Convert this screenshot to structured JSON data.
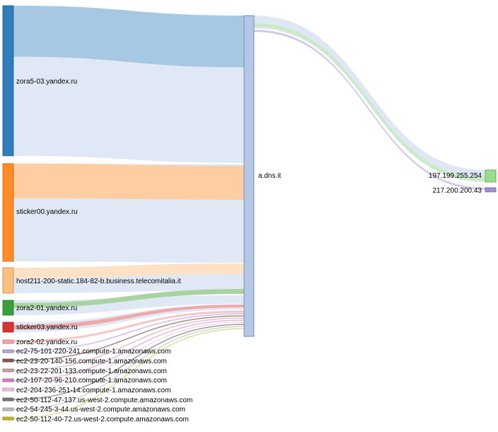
{
  "diagram": {
    "type": "sankey",
    "sources": [
      {
        "label": "zora5-03.yandex.ru",
        "color": "#2f7dba"
      },
      {
        "label": "sticker00.yandex.ru",
        "color": "#ff8c28"
      },
      {
        "label": "host211-200-static.184-82-b.business.telecomitalia.it",
        "color": "#ffbf80"
      },
      {
        "label": "zora2-01.yandex.ru",
        "color": "#3a9e3a"
      },
      {
        "label": "sticker03.yandex.ru",
        "color": "#d93333"
      },
      {
        "label": "zora2-02.yandex.ru",
        "color": "#f5a3a3"
      },
      {
        "label": "ec2-75-101-220-241.compute-1.amazonaws.com",
        "color": "#b9a9d6"
      },
      {
        "label": "ec2-23-20-140-156.compute-1.amazonaws.com",
        "color": "#7f5a4f"
      },
      {
        "label": "ec2-23-22-201-133.compute-1.amazonaws.com",
        "color": "#c9a59f"
      },
      {
        "label": "ec2-107-20-96-210.compute-1.amazonaws.com",
        "color": "#d77fc4"
      },
      {
        "label": "ec2-204-236-251-14.compute-1.amazonaws.com",
        "color": "#f0c0dc"
      },
      {
        "label": "ec2-50-112-47-137.us-west-2.compute.amazonaws.com",
        "color": "#777777"
      },
      {
        "label": "ec2-54-245-3-44.us-west-2.compute.amazonaws.com",
        "color": "#bdbdbd"
      },
      {
        "label": "ec2-50-112-40-72.us-west-2.compute.amazonaws.com",
        "color": "#bcbd22"
      }
    ],
    "hub": {
      "label": "a.dns.it",
      "color": "#b4c8e6"
    },
    "targets": [
      {
        "label": "197.199.255.254",
        "color": "#98df8a"
      },
      {
        "label": "217.200.200.43",
        "color": "#a58fd0"
      }
    ]
  }
}
